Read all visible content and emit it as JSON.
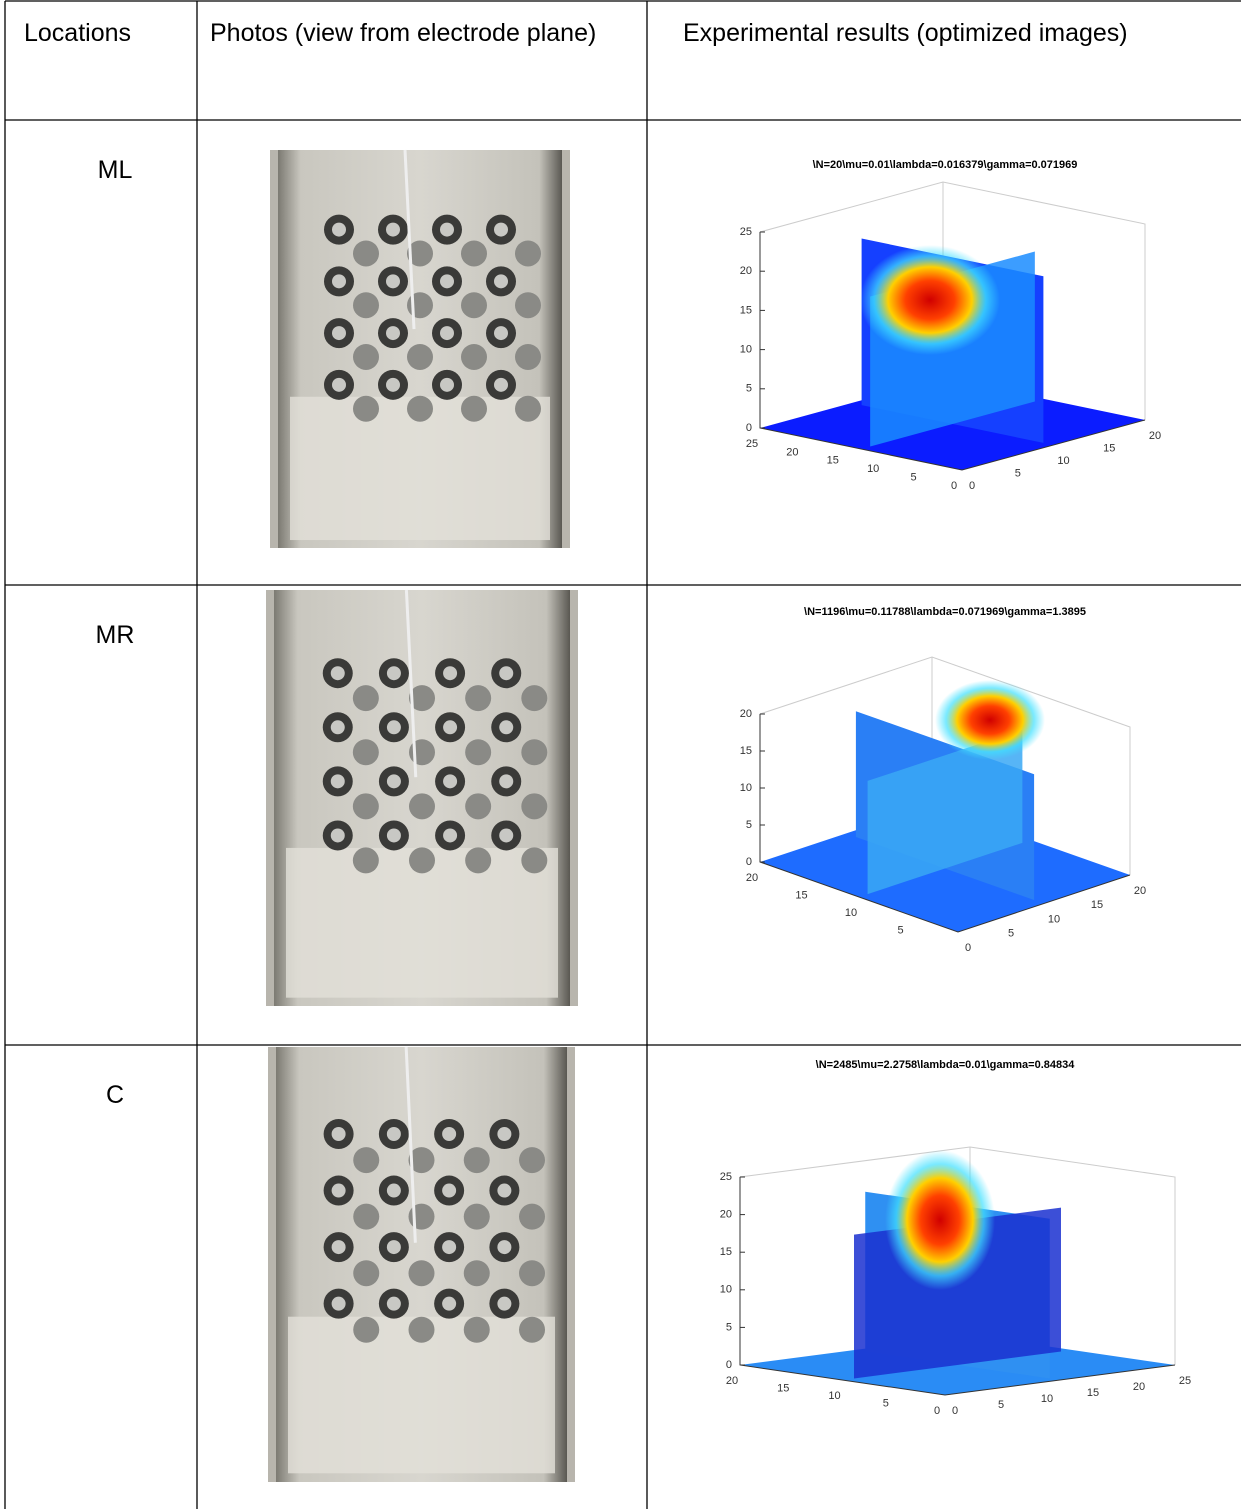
{
  "header": {
    "cells": [
      "Locations",
      "Photos (view from electrode plane)",
      "Experimental results (optimized images)"
    ]
  },
  "rows": [
    {
      "location": "ML",
      "plot": {
        "title": "\\N=20\\mu=0.01\\lambda=0.016379\\gamma=0.071969",
        "z_ticks": [
          0,
          5,
          10,
          15,
          20,
          25
        ],
        "left_ticks": [
          25,
          20,
          15,
          10,
          5,
          0
        ],
        "right_ticks": [
          0,
          5,
          10,
          15,
          20
        ]
      }
    },
    {
      "location": "MR",
      "plot": {
        "title": "\\N=1196\\mu=0.11788\\lambda=0.071969\\gamma=1.3895",
        "z_ticks": [
          0,
          5,
          10,
          15,
          20
        ],
        "left_ticks": [
          20,
          15,
          10,
          5
        ],
        "right_ticks": [
          0,
          5,
          10,
          15,
          20
        ]
      }
    },
    {
      "location": "C",
      "plot": {
        "title": "\\N=2485\\mu=2.2758\\lambda=0.01\\gamma=0.84834",
        "z_ticks": [
          0,
          5,
          10,
          15,
          20,
          25
        ],
        "left_ticks": [
          20,
          15,
          10,
          5,
          0
        ],
        "right_ticks": [
          0,
          5,
          10,
          15,
          20,
          25
        ]
      }
    }
  ]
}
